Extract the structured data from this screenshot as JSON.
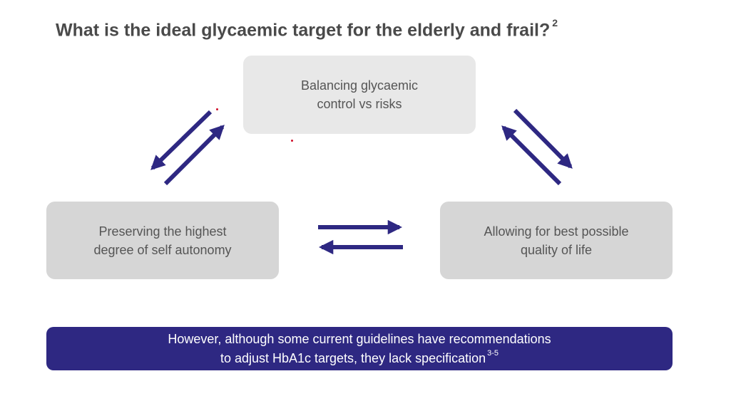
{
  "title": {
    "text": "What is the ideal glycaemic target for the elderly and frail?",
    "ref": "2"
  },
  "boxes": {
    "top": {
      "line1": "Balancing glycaemic",
      "line2": "control vs risks"
    },
    "left": {
      "line1": "Preserving the highest",
      "line2": "degree of self autonomy"
    },
    "right": {
      "line1": "Allowing for best possible",
      "line2": "quality of life"
    }
  },
  "banner": {
    "line1": "However, although some current guidelines have recommendations",
    "line2": "to adjust HbA1c targets, they lack specification",
    "ref": "3-5"
  },
  "colors": {
    "arrow": "#2e2882",
    "banner": "#2e2882",
    "box_top": "#e8e8e8",
    "box_side": "#d6d6d6",
    "title": "#4a4a4a",
    "dot": "#d0102a"
  },
  "icons": [
    "double-arrow-left-icon",
    "double-arrow-right-icon",
    "double-arrow-bottom-icon"
  ]
}
